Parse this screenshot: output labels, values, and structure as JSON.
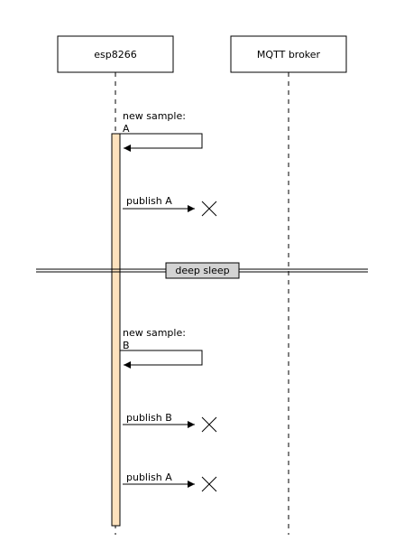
{
  "participants": [
    {
      "id": "esp",
      "label": "esp8266"
    },
    {
      "id": "broker",
      "label": "MQTT broker"
    }
  ],
  "messages": [
    {
      "type": "self",
      "label_lines": [
        "new sample:",
        "A"
      ]
    },
    {
      "type": "lost",
      "label": "publish A"
    },
    {
      "type": "self",
      "label_lines": [
        "new sample:",
        "B"
      ]
    },
    {
      "type": "lost",
      "label": "publish B"
    },
    {
      "type": "lost",
      "label": "publish A"
    }
  ],
  "divider": {
    "label": "deep sleep"
  },
  "colors": {
    "activation_fill": "#fde2bd",
    "divider_label_fill": "#d3d3d3",
    "line": "#000000"
  }
}
